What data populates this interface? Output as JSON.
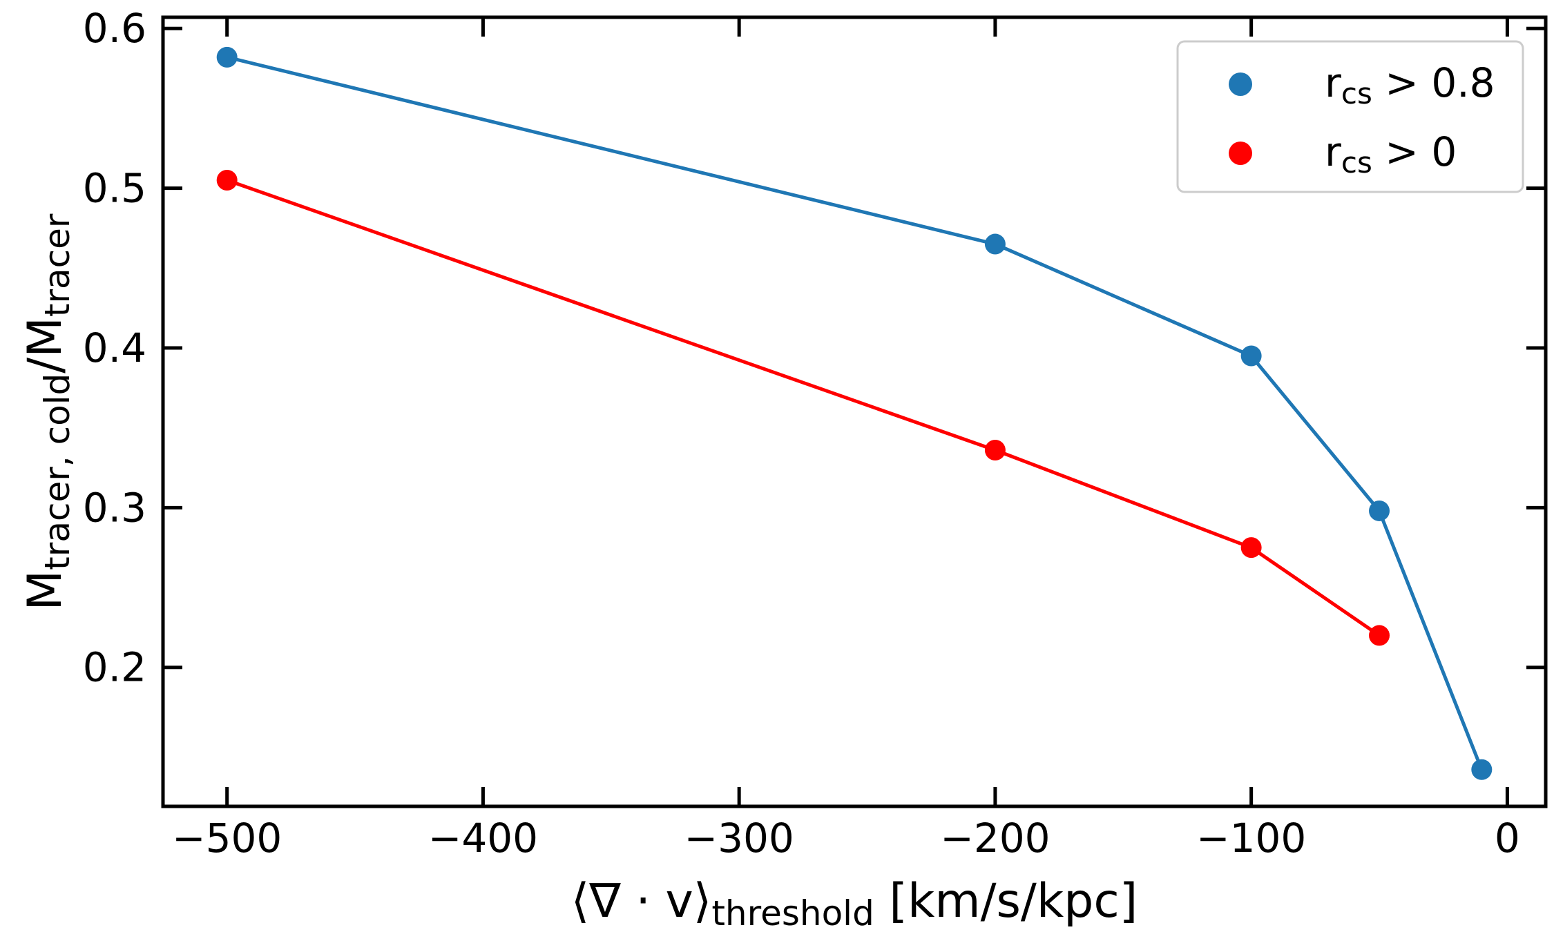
{
  "chart_data": {
    "type": "line",
    "xlabel": {
      "main": "⟨∇ · v⟩",
      "sub": "threshold",
      "unit": " [km/s/kpc]"
    },
    "ylabel": {
      "m1": "M",
      "sub1": "tracer, cold",
      "slash": "/M",
      "sub2": "tracer"
    },
    "xlim": [
      -525,
      15
    ],
    "ylim": [
      0.113,
      0.607
    ],
    "xticks": [
      -500,
      -400,
      -300,
      -200,
      -100,
      0
    ],
    "xtick_labels": [
      "−500",
      "−400",
      "−300",
      "−200",
      "−100",
      "0"
    ],
    "yticks": [
      0.2,
      0.3,
      0.4,
      0.5,
      0.6
    ],
    "ytick_labels": [
      "0.2",
      "0.3",
      "0.4",
      "0.5",
      "0.6"
    ],
    "legend_position": "top-right",
    "series": [
      {
        "name": "r_cs > 0.8",
        "label_main": "r",
        "label_sub": "cs",
        "label_rest": " > 0.8",
        "color": "#1f77b4",
        "x": [
          -500,
          -200,
          -100,
          -50,
          -10
        ],
        "y": [
          0.582,
          0.465,
          0.395,
          0.298,
          0.136
        ]
      },
      {
        "name": "r_cs > 0",
        "label_main": "r",
        "label_sub": "cs",
        "label_rest": " > 0",
        "color": "#ff0000",
        "x": [
          -500,
          -200,
          -100,
          -50
        ],
        "y": [
          0.505,
          0.336,
          0.275,
          0.22
        ]
      }
    ]
  }
}
